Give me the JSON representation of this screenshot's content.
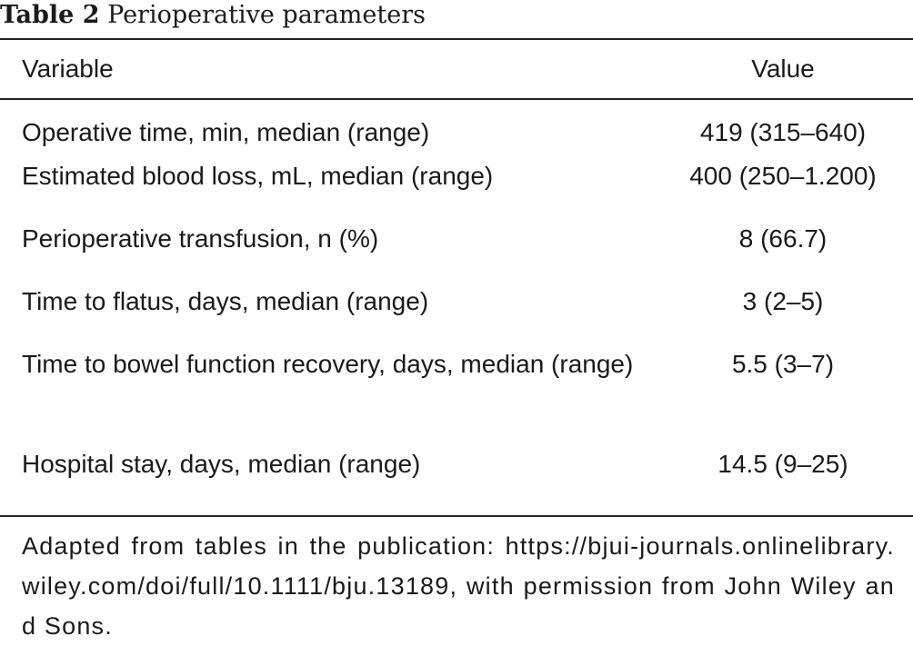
{
  "caption": {
    "label": "Table 2",
    "title": "Perioperative parameters"
  },
  "table": {
    "headers": {
      "variable": "Variable",
      "value": "Value"
    },
    "rows": [
      {
        "variable": "Operative time, min, median (range)",
        "value": "419 (315–640)"
      },
      {
        "variable": "Estimated blood loss, mL, median (range)",
        "value": "400 (250–1.200)"
      },
      {
        "variable": "Perioperative transfusion, n (%)",
        "value": "8 (66.7)"
      },
      {
        "variable": "Time to flatus, days, median (range)",
        "value": "3 (2–5)"
      },
      {
        "variable": "Time to bowel function recovery, days, median (range)",
        "value": "5.5 (3–7)"
      },
      {
        "variable": "Hospital stay, days, median (range)",
        "value": "14.5 (9–25)"
      }
    ]
  },
  "footnote": "Adapted from tables in the publication: https://bjui-journals.onlinelibrary.wiley.com/doi/full/10.1111/bju.13189, with permission from John Wiley and Sons."
}
